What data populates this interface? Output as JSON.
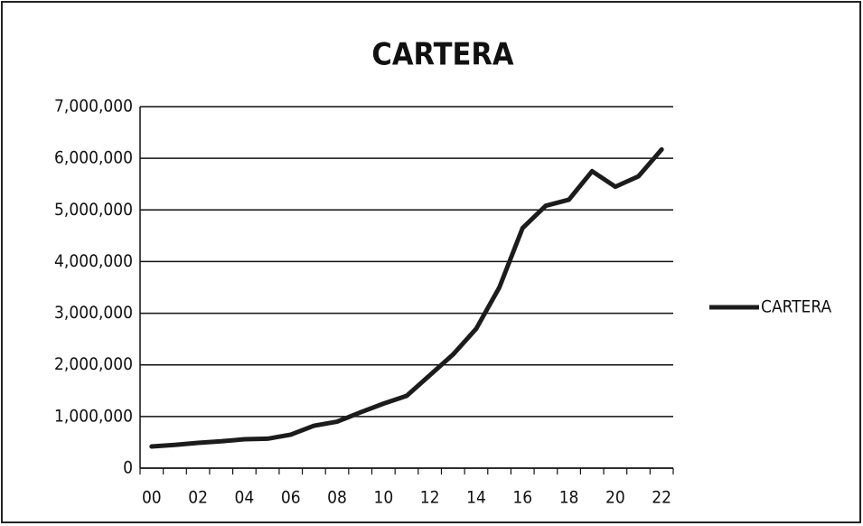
{
  "chart_data": {
    "type": "line",
    "title": "CARTERA",
    "categories": [
      "00",
      null,
      "02",
      null,
      "04",
      null,
      "06",
      null,
      "08",
      null,
      "10",
      null,
      "12",
      null,
      "14",
      null,
      "16",
      null,
      "18",
      null,
      "20",
      null,
      "22"
    ],
    "series": [
      {
        "name": "CARTERA",
        "color": "#1c1c1c",
        "values": [
          420000,
          450000,
          490000,
          520000,
          560000,
          570000,
          650000,
          820000,
          900000,
          1080000,
          1250000,
          1400000,
          1800000,
          2200000,
          2700000,
          3500000,
          4650000,
          5080000,
          5200000,
          5750000,
          5450000,
          5650000,
          6170000
        ]
      }
    ],
    "ylim": [
      0,
      7000000
    ],
    "yticks": [
      0,
      {
        "value": 1000000,
        "label": "1,000,000"
      },
      {
        "value": 2000000,
        "label": "2,000,000"
      },
      {
        "value": 3000000,
        "label": "3,000,000"
      },
      {
        "value": 4000000,
        "label": "4,000,000"
      },
      {
        "value": 5000000,
        "label": "5,000,000"
      },
      {
        "value": 6000000,
        "label": "6,000,000"
      },
      {
        "value": 7000000,
        "label": "7,000,000"
      }
    ],
    "grid": true,
    "legend": "right"
  }
}
